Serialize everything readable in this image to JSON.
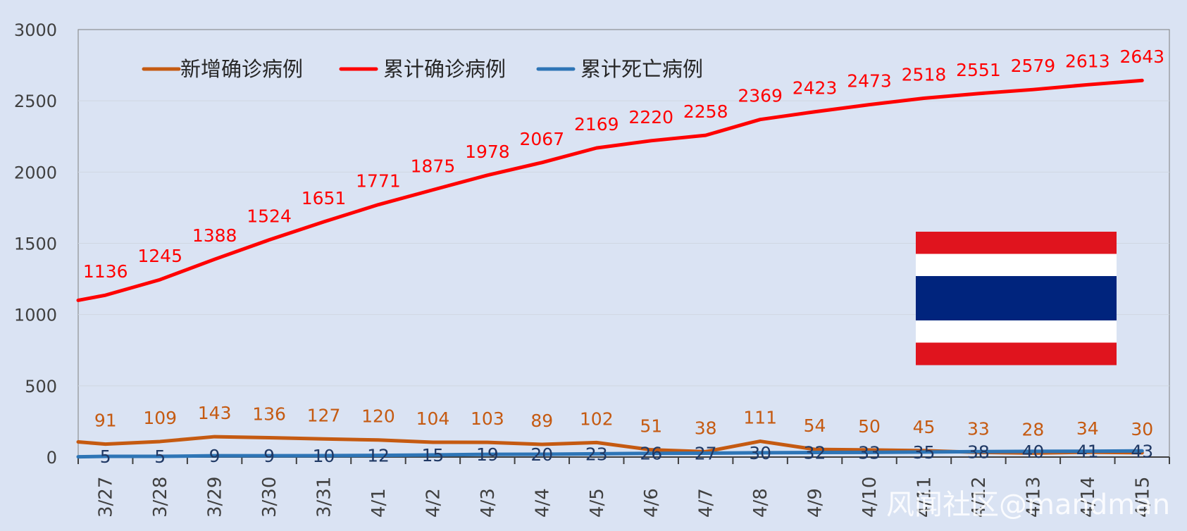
{
  "chart_data": {
    "type": "line",
    "categories": [
      "3/27",
      "3/28",
      "3/29",
      "3/30",
      "3/31",
      "4/1",
      "4/2",
      "4/3",
      "4/4",
      "4/5",
      "4/6",
      "4/7",
      "4/8",
      "4/9",
      "4/10",
      "4/11",
      "4/12",
      "4/13",
      "4/14",
      "4/15"
    ],
    "ylim": [
      0,
      3000
    ],
    "yticks": [
      "0",
      "500",
      "1000",
      "1500",
      "2000",
      "2500",
      "3000"
    ],
    "grid": true,
    "legend": "top-left",
    "series": [
      {
        "name": "新增确诊病例",
        "color": "#c55a11",
        "values": [
          91,
          109,
          143,
          136,
          127,
          120,
          104,
          103,
          89,
          102,
          51,
          38,
          111,
          54,
          50,
          45,
          33,
          28,
          34,
          30
        ],
        "labels": [
          "91",
          "109",
          "143",
          "136",
          "127",
          "120",
          "104",
          "103",
          "89",
          "102",
          "51",
          "38",
          "111",
          "54",
          "50",
          "45",
          "33",
          "28",
          "34",
          "30"
        ]
      },
      {
        "name": "累计确诊病例",
        "color": "#ff0000",
        "values": [
          1136,
          1245,
          1388,
          1524,
          1651,
          1771,
          1875,
          1978,
          2067,
          2169,
          2220,
          2258,
          2369,
          2423,
          2473,
          2518,
          2551,
          2579,
          2613,
          2643
        ],
        "labels": [
          "1136",
          "1245",
          "1388",
          "1524",
          "1651",
          "1771",
          "1875",
          "1978",
          "2067",
          "2169",
          "2220",
          "2258",
          "2369",
          "2423",
          "2473",
          "2518",
          "2551",
          "2579",
          "2613",
          "2643"
        ]
      },
      {
        "name": "累计死亡病例",
        "color": "#2e75b6",
        "values": [
          5,
          5,
          9,
          9,
          10,
          12,
          15,
          19,
          20,
          23,
          26,
          27,
          30,
          32,
          33,
          35,
          38,
          40,
          41,
          43
        ],
        "labels": [
          "5",
          "5",
          "9",
          "9",
          "10",
          "12",
          "15",
          "19",
          "20",
          "23",
          "26",
          "27",
          "30",
          "32",
          "33",
          "35",
          "38",
          "40",
          "41",
          "43"
        ]
      }
    ],
    "series_start_values": [
      106,
      1100,
      2
    ]
  },
  "flag": {
    "icon": "thailand-flag",
    "colors": {
      "red": "#e0141e",
      "white": "#ffffff",
      "blue": "#00247d"
    }
  },
  "watermark": "风闻社区@mandman"
}
